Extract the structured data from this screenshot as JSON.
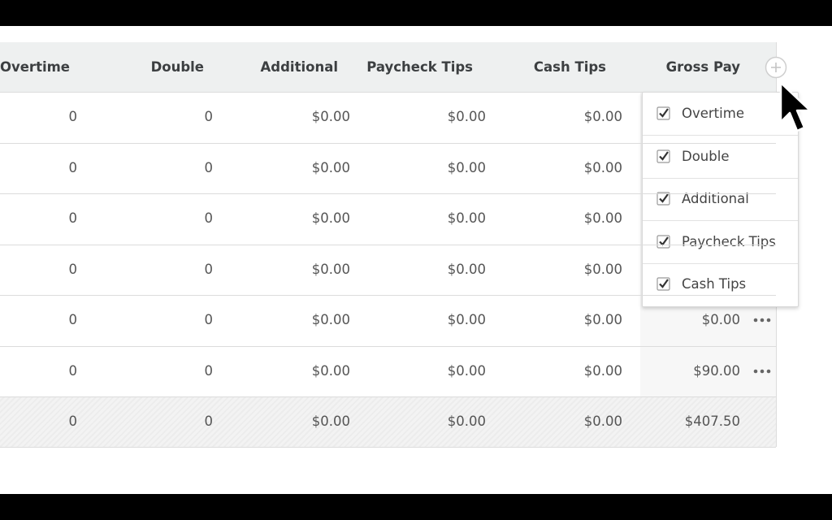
{
  "table": {
    "headers": [
      "Overtime",
      "Double",
      "Additional",
      "Paycheck Tips",
      "Cash Tips",
      "Gross Pay"
    ],
    "rows": [
      {
        "cells": [
          "0",
          "0",
          "$0.00",
          "$0.00",
          "$0.00"
        ]
      },
      {
        "cells": [
          "0",
          "0",
          "$0.00",
          "$0.00",
          "$0.00"
        ]
      },
      {
        "cells": [
          "0",
          "0",
          "$0.00",
          "$0.00",
          "$0.00"
        ]
      },
      {
        "cells": [
          "0",
          "0",
          "$0.00",
          "$0.00",
          "$0.00"
        ]
      },
      {
        "cells": [
          "0",
          "0",
          "$0.00",
          "$0.00",
          "$0.00"
        ],
        "gross_pay": "$0.00"
      },
      {
        "cells": [
          "0",
          "0",
          "$0.00",
          "$0.00",
          "$0.00"
        ],
        "gross_pay": "$90.00"
      }
    ],
    "total": {
      "cells": [
        "0",
        "0",
        "$0.00",
        "$0.00",
        "$0.00"
      ],
      "gross_pay": "$407.50"
    }
  },
  "column_menu": {
    "items": [
      {
        "label": "Overtime",
        "checked": true
      },
      {
        "label": "Double",
        "checked": true
      },
      {
        "label": "Additional",
        "checked": true
      },
      {
        "label": "Paycheck Tips",
        "checked": true
      },
      {
        "label": "Cash Tips",
        "checked": true
      }
    ]
  }
}
